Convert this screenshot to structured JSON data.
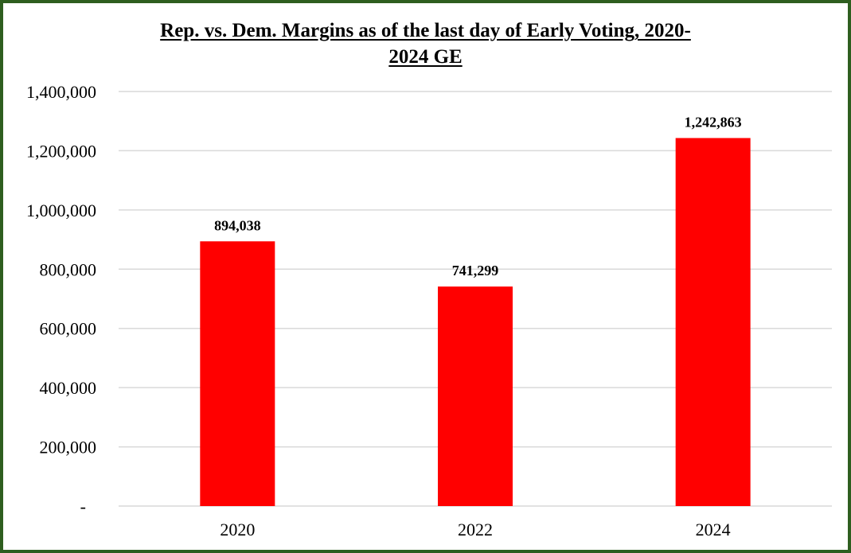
{
  "chart_data": {
    "type": "bar",
    "title_line1": "Rep. vs. Dem. Margins  as of the last day of Early Voting, 2020-",
    "title_line2": "2024 GE",
    "xlabel": "",
    "ylabel": "",
    "categories": [
      "2020",
      "2022",
      "2024"
    ],
    "values": [
      894038,
      741299,
      1242863
    ],
    "data_labels": [
      "894,038",
      "741,299",
      "1,242,863"
    ],
    "ylim": [
      0,
      1400000
    ],
    "y_ticks": [
      0,
      200000,
      400000,
      600000,
      800000,
      1000000,
      1200000,
      1400000
    ],
    "y_tick_labels": [
      "-",
      "200,000",
      "400,000",
      "600,000",
      "800,000",
      "1,000,000",
      "1,200,000",
      "1,400,000"
    ],
    "grid": true,
    "legend": "none",
    "colors": {
      "bar": "#ff0000",
      "grid": "#d9d9d9",
      "frame": "#2e5e1f"
    }
  }
}
